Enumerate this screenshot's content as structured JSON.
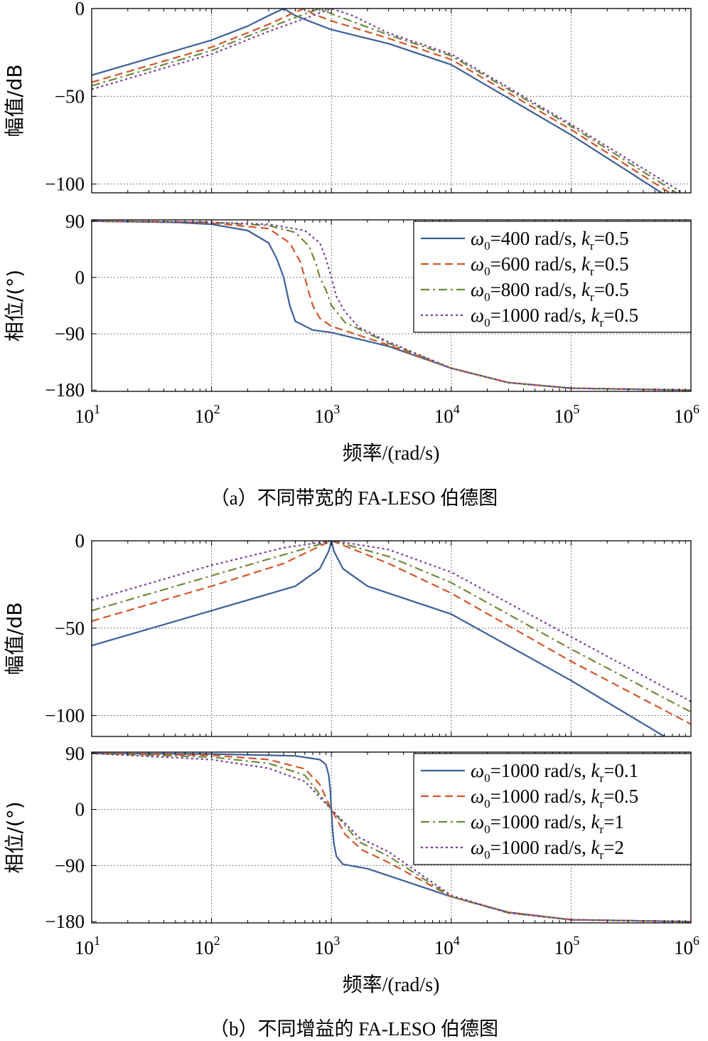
{
  "chart_data": [
    {
      "type": "line",
      "panel": "magnitude",
      "group": "a",
      "ylabel": "幅值/dB",
      "xscale": "log",
      "xlim": [
        10,
        1000000
      ],
      "ylim": [
        -105,
        0
      ],
      "yticks": [
        "0",
        "−50",
        "−100"
      ],
      "ytick_values": [
        0,
        -50,
        -100
      ],
      "grid": true,
      "series": [
        {
          "color": "#3d5f9a",
          "style": "solid",
          "x": [
            10,
            100,
            200,
            300,
            400,
            500,
            700,
            1000,
            3000,
            10000,
            100000,
            600000
          ],
          "y": [
            -38,
            -18,
            -10,
            -4,
            0,
            -4,
            -8,
            -12,
            -20,
            -32,
            -72,
            -106
          ]
        },
        {
          "color": "#d4562a",
          "style": "dashed",
          "x": [
            10,
            100,
            300,
            500,
            600,
            700,
            1000,
            3000,
            10000,
            100000,
            700000
          ],
          "y": [
            -42,
            -22,
            -9,
            -2,
            0,
            -3,
            -7,
            -17,
            -29,
            -69,
            -106
          ]
        },
        {
          "color": "#6e8b3d",
          "style": "dashdot",
          "x": [
            10,
            100,
            300,
            600,
            800,
            1000,
            3000,
            10000,
            100000,
            800000
          ],
          "y": [
            -44,
            -24,
            -11,
            -3,
            0,
            -3,
            -15,
            -27,
            -67,
            -106
          ]
        },
        {
          "color": "#7a3b9e",
          "style": "dotted",
          "x": [
            10,
            100,
            300,
            700,
            1000,
            1500,
            3000,
            10000,
            100000,
            900000
          ],
          "y": [
            -46,
            -26,
            -13,
            -4,
            0,
            -4,
            -14,
            -26,
            -66,
            -106
          ]
        }
      ]
    },
    {
      "type": "line",
      "panel": "phase",
      "group": "a",
      "ylabel": "相位/(°)",
      "xscale": "log",
      "xlim": [
        10,
        1000000
      ],
      "ylim": [
        -182,
        92
      ],
      "yticks": [
        "90",
        "0",
        "−90",
        "−180"
      ],
      "ytick_values": [
        90,
        0,
        -90,
        -180
      ],
      "grid": true,
      "legend_position": "top-right",
      "legend": [
        {
          "omega": "ω",
          "sub": "0",
          "text": "=400 rad/s, ",
          "k": "k",
          "ksub": "r",
          "tail": "=0.5"
        },
        {
          "omega": "ω",
          "sub": "0",
          "text": "=600 rad/s, ",
          "k": "k",
          "ksub": "r",
          "tail": "=0.5"
        },
        {
          "omega": "ω",
          "sub": "0",
          "text": "=800 rad/s, ",
          "k": "k",
          "ksub": "r",
          "tail": "=0.5"
        },
        {
          "omega": "ω",
          "sub": "0",
          "text": "=1000 rad/s, ",
          "k": "k",
          "ksub": "r",
          "tail": "=0.5"
        }
      ],
      "series": [
        {
          "color": "#3d5f9a",
          "style": "solid",
          "x": [
            10,
            50,
            100,
            200,
            300,
            350,
            400,
            450,
            500,
            700,
            1000,
            3000,
            10000,
            30000,
            100000,
            1000000
          ],
          "y": [
            90,
            88,
            85,
            75,
            55,
            30,
            0,
            -45,
            -70,
            -84,
            -88,
            -110,
            -145,
            -168,
            -177,
            -180
          ]
        },
        {
          "color": "#d4562a",
          "style": "dashed",
          "x": [
            10,
            50,
            100,
            300,
            450,
            550,
            600,
            650,
            700,
            800,
            1000,
            3000,
            10000,
            30000,
            100000,
            1000000
          ],
          "y": [
            90,
            89,
            87,
            78,
            55,
            25,
            0,
            -25,
            -45,
            -65,
            -78,
            -108,
            -145,
            -168,
            -177,
            -180
          ]
        },
        {
          "color": "#6e8b3d",
          "style": "dashdot",
          "x": [
            10,
            100,
            300,
            500,
            650,
            750,
            800,
            900,
            1000,
            1300,
            3000,
            10000,
            30000,
            100000,
            1000000
          ],
          "y": [
            90,
            88,
            83,
            72,
            50,
            20,
            0,
            -20,
            -45,
            -72,
            -105,
            -145,
            -168,
            -177,
            -180
          ]
        },
        {
          "color": "#7a3b9e",
          "style": "dotted",
          "x": [
            10,
            100,
            300,
            600,
            800,
            900,
            1000,
            1100,
            1300,
            1700,
            3000,
            10000,
            30000,
            100000,
            1000000
          ],
          "y": [
            90,
            88,
            85,
            75,
            55,
            30,
            0,
            -30,
            -55,
            -80,
            -103,
            -145,
            -168,
            -177,
            -180
          ]
        }
      ]
    },
    {
      "type": "line",
      "panel": "magnitude",
      "group": "b",
      "ylabel": "幅值/dB",
      "xscale": "log",
      "xlim": [
        10,
        1000000
      ],
      "ylim": [
        -112,
        0
      ],
      "yticks": [
        "0",
        "−50",
        "−100"
      ],
      "ytick_values": [
        0,
        -50,
        -100
      ],
      "grid": true,
      "series": [
        {
          "color": "#3d5f9a",
          "style": "solid",
          "x": [
            10,
            100,
            500,
            800,
            950,
            1000,
            1050,
            1250,
            2000,
            10000,
            100000,
            600000
          ],
          "y": [
            -60,
            -40,
            -26,
            -16,
            -6,
            0,
            -6,
            -16,
            -26,
            -42,
            -80,
            -112
          ]
        },
        {
          "color": "#d4562a",
          "style": "dashed",
          "x": [
            10,
            100,
            400,
            800,
            1000,
            1300,
            3000,
            10000,
            100000,
            1000000
          ],
          "y": [
            -46,
            -26,
            -13,
            -3,
            0,
            -3,
            -13,
            -30,
            -69,
            -105
          ]
        },
        {
          "color": "#6e8b3d",
          "style": "dashdot",
          "x": [
            10,
            100,
            400,
            800,
            1000,
            1300,
            3000,
            10000,
            100000,
            1000000
          ],
          "y": [
            -40,
            -20,
            -8,
            -2,
            0,
            -2,
            -9,
            -24,
            -62,
            -98
          ]
        },
        {
          "color": "#7a3b9e",
          "style": "dotted",
          "x": [
            10,
            100,
            400,
            800,
            1000,
            1300,
            3000,
            10000,
            100000,
            1000000
          ],
          "y": [
            -34,
            -14,
            -4,
            -1,
            0,
            -1,
            -5,
            -18,
            -55,
            -92
          ]
        }
      ]
    },
    {
      "type": "line",
      "panel": "phase",
      "group": "b",
      "ylabel": "相位/(°)",
      "xlabel": "频率/(rad/s)",
      "xscale": "log",
      "xlim": [
        10,
        1000000
      ],
      "ylim": [
        -182,
        92
      ],
      "yticks": [
        "90",
        "0",
        "−90",
        "−180"
      ],
      "ytick_values": [
        90,
        0,
        -90,
        -180
      ],
      "xticks": [
        "10",
        "10",
        "10",
        "10",
        "10",
        "10"
      ],
      "xtick_exponents": [
        "1",
        "2",
        "3",
        "4",
        "5",
        "6"
      ],
      "xtick_values": [
        10,
        100,
        1000,
        10000,
        100000,
        1000000
      ],
      "grid": true,
      "legend_position": "top-right",
      "legend": [
        {
          "omega": "ω",
          "sub": "0",
          "text": "=1000 rad/s, ",
          "k": "k",
          "ksub": "r",
          "tail": "=0.1"
        },
        {
          "omega": "ω",
          "sub": "0",
          "text": "=1000 rad/s, ",
          "k": "k",
          "ksub": "r",
          "tail": "=0.5"
        },
        {
          "omega": "ω",
          "sub": "0",
          "text": "=1000 rad/s, ",
          "k": "k",
          "ksub": "r",
          "tail": "=1"
        },
        {
          "omega": "ω",
          "sub": "0",
          "text": "=1000 rad/s, ",
          "k": "k",
          "ksub": "r",
          "tail": "=2"
        }
      ],
      "series": [
        {
          "color": "#3d5f9a",
          "style": "solid",
          "x": [
            10,
            100,
            500,
            800,
            900,
            950,
            980,
            1000,
            1020,
            1050,
            1100,
            1250,
            2000,
            10000,
            30000,
            100000,
            1000000
          ],
          "y": [
            90,
            89,
            86,
            80,
            72,
            55,
            30,
            0,
            -30,
            -55,
            -75,
            -88,
            -95,
            -140,
            -165,
            -177,
            -180
          ]
        },
        {
          "color": "#d4562a",
          "style": "dashed",
          "x": [
            10,
            100,
            300,
            600,
            800,
            1000,
            1300,
            1800,
            3000,
            10000,
            30000,
            100000,
            1000000
          ],
          "y": [
            90,
            87,
            80,
            65,
            40,
            0,
            -40,
            -65,
            -85,
            -140,
            -165,
            -177,
            -180
          ]
        },
        {
          "color": "#6e8b3d",
          "style": "dashdot",
          "x": [
            10,
            100,
            300,
            600,
            1000,
            1700,
            3000,
            10000,
            30000,
            100000,
            1000000
          ],
          "y": [
            90,
            84,
            74,
            55,
            0,
            -52,
            -75,
            -140,
            -166,
            -177,
            -180
          ]
        },
        {
          "color": "#7a3b9e",
          "style": "dotted",
          "x": [
            10,
            100,
            300,
            600,
            1000,
            1700,
            3000,
            10000,
            30000,
            100000,
            1000000
          ],
          "y": [
            90,
            80,
            66,
            45,
            0,
            -45,
            -68,
            -138,
            -166,
            -177,
            -180
          ]
        }
      ]
    }
  ],
  "captions": {
    "a": "（a）不同带宽的 FA-LESO 伯德图",
    "b": "（b）不同增益的 FA-LESO 伯德图"
  }
}
